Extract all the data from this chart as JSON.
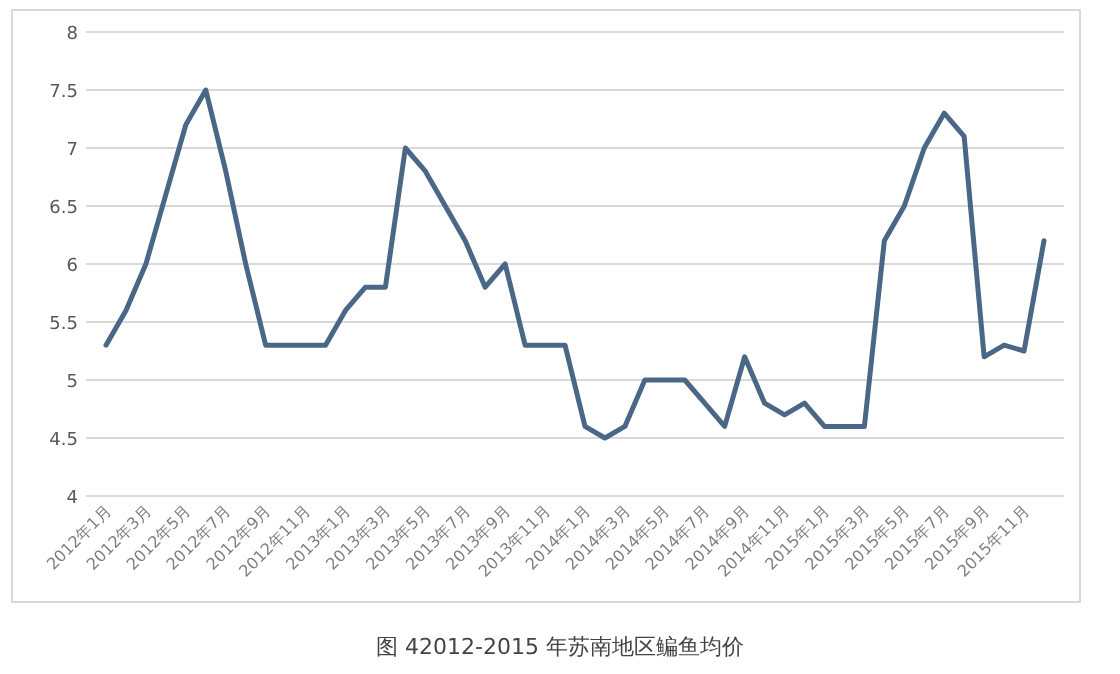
{
  "chart_data": {
    "type": "line",
    "title": "图 42012-2015 年苏南地区鳊鱼均价",
    "categories": [
      "2012年1月",
      null,
      "2012年3月",
      null,
      "2012年5月",
      null,
      "2012年7月",
      null,
      "2012年9月",
      null,
      "2012年11月",
      null,
      "2013年1月",
      null,
      "2013年3月",
      null,
      "2013年5月",
      null,
      "2013年7月",
      null,
      "2013年9月",
      null,
      "2013年11月",
      null,
      "2014年1月",
      null,
      "2014年3月",
      null,
      "2014年5月",
      null,
      "2014年7月",
      null,
      "2014年9月",
      null,
      "2014年11月",
      null,
      "2015年1月",
      null,
      "2015年3月",
      null,
      "2015年5月",
      null,
      "2015年7月",
      null,
      "2015年9月",
      null,
      "2015年11月",
      null
    ],
    "series": [
      {
        "color": "#4a6788",
        "values": [
          5.3,
          5.6,
          6.0,
          6.6,
          7.2,
          7.5,
          6.8,
          6.0,
          5.3,
          5.3,
          5.3,
          5.3,
          5.6,
          5.8,
          5.8,
          7.0,
          6.8,
          6.5,
          6.2,
          5.8,
          6.0,
          5.3,
          5.3,
          5.3,
          4.6,
          4.5,
          4.6,
          5.0,
          5.0,
          5.0,
          4.8,
          4.6,
          5.2,
          4.8,
          4.7,
          4.8,
          4.6,
          4.6,
          4.6,
          6.2,
          6.5,
          7.0,
          7.3,
          7.1,
          5.2,
          5.3,
          5.25,
          6.2
        ]
      }
    ],
    "ylim": [
      4,
      8
    ],
    "yticks": [
      4,
      4.5,
      5,
      5.5,
      6,
      6.5,
      7,
      7.5,
      8
    ],
    "grid": "y"
  }
}
